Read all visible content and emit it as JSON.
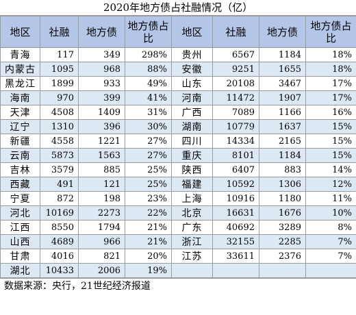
{
  "title": "2020年地方债占社融情况（亿）",
  "headers": [
    "地区",
    "社融",
    "地方债",
    "地方债占比",
    "地区",
    "社融",
    "地方债",
    "地方债占比"
  ],
  "rows": [
    [
      "青海",
      "117",
      "349",
      "298%",
      "贵州",
      "6567",
      "1184",
      "18%"
    ],
    [
      "内蒙古",
      "1095",
      "968",
      "88%",
      "安徽",
      "9251",
      "1655",
      "18%"
    ],
    [
      "黑龙江",
      "1899",
      "933",
      "49%",
      "山东",
      "20108",
      "3467",
      "17%"
    ],
    [
      "海南",
      "970",
      "399",
      "41%",
      "河南",
      "11472",
      "1907",
      "17%"
    ],
    [
      "天津",
      "4508",
      "1409",
      "31%",
      "广西",
      "7089",
      "1166",
      "16%"
    ],
    [
      "辽宁",
      "1310",
      "396",
      "30%",
      "湖南",
      "10779",
      "1637",
      "15%"
    ],
    [
      "新疆",
      "4558",
      "1221",
      "27%",
      "四川",
      "14334",
      "2165",
      "15%"
    ],
    [
      "云南",
      "5873",
      "1563",
      "27%",
      "重庆",
      "8101",
      "1184",
      "15%"
    ],
    [
      "吉林",
      "3579",
      "885",
      "25%",
      "陕西",
      "6407",
      "883",
      "14%"
    ],
    [
      "西藏",
      "491",
      "121",
      "25%",
      "福建",
      "10592",
      "1306",
      "12%"
    ],
    [
      "宁夏",
      "872",
      "198",
      "23%",
      "上海",
      "10916",
      "1180",
      "11%"
    ],
    [
      "河北",
      "10169",
      "2273",
      "22%",
      "北京",
      "16631",
      "1676",
      "10%"
    ],
    [
      "江西",
      "8550",
      "1794",
      "21%",
      "广东",
      "40692",
      "3289",
      "8%"
    ],
    [
      "山西",
      "4689",
      "966",
      "21%",
      "浙江",
      "32155",
      "2285",
      "7%"
    ],
    [
      "甘肃",
      "4016",
      "821",
      "20%",
      "江苏",
      "33611",
      "2376",
      "7%"
    ],
    [
      "湖北",
      "10433",
      "2006",
      "19%",
      "",
      "",
      "",
      ""
    ]
  ],
  "source": "数据来源：央行，21世纪经济报道",
  "colors": {
    "header_bg": "#b4c6e7",
    "band_bg": "#dde8f5",
    "grid": "#9a9a9a"
  }
}
